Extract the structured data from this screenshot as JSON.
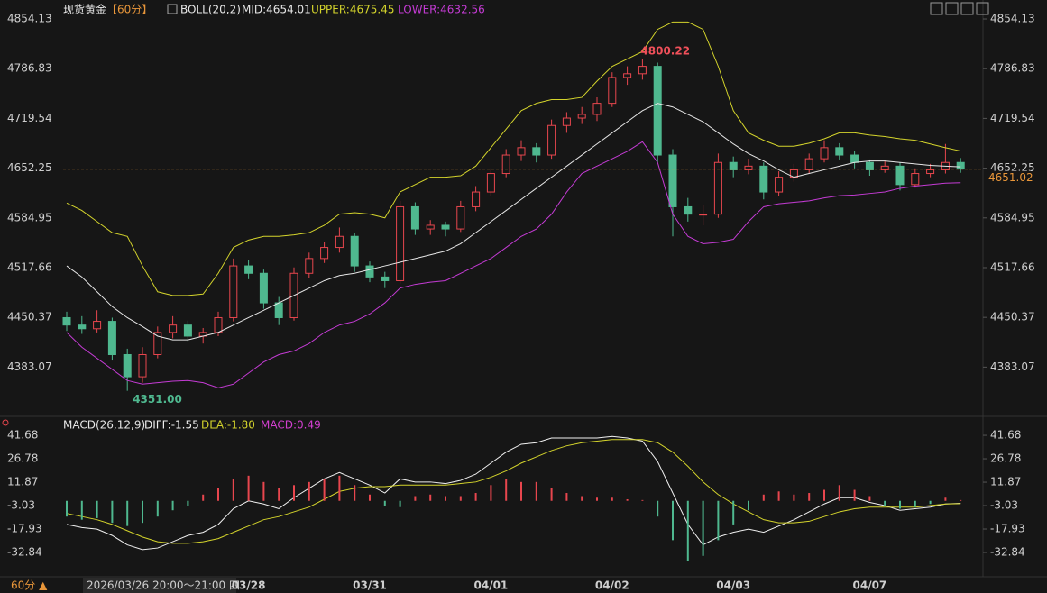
{
  "chart_data": [
    {
      "type": "candlestick",
      "title": "现货黄金",
      "period": "【60分】",
      "indicator": "BOLL(20,2)",
      "header_labels": [
        "MID:4654.01",
        "UPPER:4675.45",
        "LOWER:4632.56"
      ],
      "categories": [
        null,
        null,
        null,
        null,
        null,
        null,
        null,
        null,
        null,
        null,
        null,
        null,
        "03/28",
        null,
        null,
        null,
        null,
        null,
        null,
        null,
        "03/31",
        null,
        null,
        null,
        null,
        null,
        null,
        null,
        "04/01",
        null,
        null,
        null,
        null,
        null,
        null,
        null,
        "04/02",
        null,
        null,
        null,
        null,
        null,
        null,
        null,
        "04/03",
        null,
        null,
        null,
        null,
        null,
        null,
        null,
        null,
        "04/07",
        null,
        null,
        null,
        null,
        null,
        null
      ],
      "up_color": "#e8464e",
      "down_color": "#4fb88f",
      "ohlc": [
        [
          4450,
          4458,
          4432,
          4440
        ],
        [
          4440,
          4452,
          4428,
          4435
        ],
        [
          4435,
          4460,
          4430,
          4445
        ],
        [
          4445,
          4450,
          4392,
          4400
        ],
        [
          4400,
          4408,
          4351,
          4370
        ],
        [
          4370,
          4410,
          4362,
          4400
        ],
        [
          4400,
          4438,
          4395,
          4430
        ],
        [
          4430,
          4452,
          4422,
          4440
        ],
        [
          4440,
          4446,
          4418,
          4425
        ],
        [
          4425,
          4436,
          4415,
          4430
        ],
        [
          4430,
          4458,
          4425,
          4450
        ],
        [
          4450,
          4530,
          4445,
          4520
        ],
        [
          4520,
          4528,
          4502,
          4510
        ],
        [
          4510,
          4515,
          4462,
          4470
        ],
        [
          4470,
          4478,
          4440,
          4450
        ],
        [
          4450,
          4518,
          4446,
          4510
        ],
        [
          4510,
          4538,
          4504,
          4530
        ],
        [
          4530,
          4552,
          4524,
          4545
        ],
        [
          4545,
          4572,
          4538,
          4560
        ],
        [
          4560,
          4565,
          4512,
          4520
        ],
        [
          4520,
          4526,
          4498,
          4505
        ],
        [
          4505,
          4512,
          4490,
          4500
        ],
        [
          4500,
          4608,
          4496,
          4600
        ],
        [
          4600,
          4606,
          4562,
          4570
        ],
        [
          4570,
          4582,
          4562,
          4575
        ],
        [
          4575,
          4580,
          4560,
          4570
        ],
        [
          4570,
          4608,
          4566,
          4600
        ],
        [
          4600,
          4628,
          4594,
          4620
        ],
        [
          4620,
          4652,
          4614,
          4645
        ],
        [
          4645,
          4678,
          4640,
          4670
        ],
        [
          4670,
          4690,
          4662,
          4680
        ],
        [
          4680,
          4686,
          4660,
          4670
        ],
        [
          4670,
          4718,
          4665,
          4710
        ],
        [
          4710,
          4728,
          4700,
          4720
        ],
        [
          4720,
          4735,
          4712,
          4725
        ],
        [
          4725,
          4748,
          4716,
          4740
        ],
        [
          4740,
          4782,
          4735,
          4775
        ],
        [
          4775,
          4790,
          4765,
          4780
        ],
        [
          4780,
          4800.22,
          4772,
          4790
        ],
        [
          4790,
          4795,
          4660,
          4670
        ],
        [
          4670,
          4678,
          4560,
          4600
        ],
        [
          4600,
          4612,
          4580,
          4590
        ],
        [
          4590,
          4602,
          4575,
          4590
        ],
        [
          4590,
          4672,
          4585,
          4660
        ],
        [
          4660,
          4668,
          4640,
          4650
        ],
        [
          4650,
          4665,
          4644,
          4655
        ],
        [
          4655,
          4660,
          4610,
          4620
        ],
        [
          4620,
          4648,
          4614,
          4640
        ],
        [
          4640,
          4658,
          4634,
          4650
        ],
        [
          4650,
          4672,
          4645,
          4665
        ],
        [
          4665,
          4690,
          4660,
          4680
        ],
        [
          4680,
          4686,
          4664,
          4670
        ],
        [
          4670,
          4676,
          4652,
          4660
        ],
        [
          4660,
          4664,
          4642,
          4650
        ],
        [
          4650,
          4662,
          4646,
          4655
        ],
        [
          4655,
          4660,
          4622,
          4630
        ],
        [
          4630,
          4652,
          4626,
          4645
        ],
        [
          4645,
          4658,
          4640,
          4650
        ],
        [
          4650,
          4685,
          4645,
          4660
        ],
        [
          4660,
          4666,
          4646,
          4651.02
        ]
      ],
      "series": [
        {
          "name": "MID",
          "color": "#e6e6e6",
          "values": [
            4520,
            4505,
            4485,
            4465,
            4450,
            4438,
            4425,
            4420,
            4420,
            4425,
            4430,
            4440,
            4450,
            4460,
            4470,
            4480,
            4490,
            4500,
            4507,
            4510,
            4515,
            4520,
            4525,
            4530,
            4535,
            4540,
            4550,
            4565,
            4580,
            4595,
            4610,
            4625,
            4640,
            4655,
            4670,
            4685,
            4700,
            4715,
            4730,
            4740,
            4735,
            4725,
            4715,
            4700,
            4685,
            4672,
            4662,
            4650,
            4640,
            4645,
            4650,
            4655,
            4660,
            4662,
            4662,
            4660,
            4658,
            4656,
            4655,
            4654.01
          ]
        },
        {
          "name": "UPPER",
          "color": "#d4d42c",
          "values": [
            4605,
            4595,
            4580,
            4565,
            4560,
            4520,
            4485,
            4480,
            4480,
            4482,
            4510,
            4545,
            4555,
            4560,
            4560,
            4562,
            4565,
            4575,
            4590,
            4592,
            4590,
            4585,
            4620,
            4630,
            4640,
            4640,
            4642,
            4655,
            4680,
            4705,
            4730,
            4740,
            4745,
            4745,
            4748,
            4770,
            4790,
            4800,
            4810,
            4840,
            4850,
            4850,
            4840,
            4790,
            4730,
            4700,
            4690,
            4682,
            4682,
            4686,
            4692,
            4700,
            4700,
            4697,
            4695,
            4692,
            4690,
            4685,
            4680,
            4675.45
          ]
        },
        {
          "name": "LOWER",
          "color": "#c43bd4",
          "values": [
            4430,
            4410,
            4395,
            4380,
            4365,
            4360,
            4362,
            4364,
            4365,
            4362,
            4355,
            4360,
            4375,
            4390,
            4400,
            4405,
            4415,
            4430,
            4440,
            4445,
            4455,
            4470,
            4490,
            4495,
            4498,
            4500,
            4510,
            4520,
            4530,
            4545,
            4560,
            4570,
            4590,
            4620,
            4645,
            4655,
            4665,
            4675,
            4688,
            4660,
            4590,
            4560,
            4550,
            4552,
            4556,
            4580,
            4600,
            4604,
            4606,
            4608,
            4612,
            4615,
            4616,
            4618,
            4620,
            4625,
            4628,
            4630,
            4632,
            4632.56
          ]
        }
      ],
      "annotations": [
        {
          "value": 4800.22,
          "label": "4800.22",
          "color": "#f0505a"
        },
        {
          "value": 4351,
          "label": "4351.00",
          "color": "#4fb88f"
        }
      ],
      "last_color": "#e8963a",
      "ylim": [
        4340,
        4860
      ],
      "yticks": [
        4854.13,
        4786.83,
        4719.54,
        4652.25,
        4584.95,
        4517.66,
        4450.37,
        4383.07
      ]
    },
    {
      "type": "macd",
      "title": "MACD(26,12,9)",
      "header_labels": [
        "DIFF:-1.55",
        "DEA:-1.80",
        "MACD:0.49"
      ],
      "series": [
        {
          "name": "DIFF",
          "color": "#f0f0f0",
          "values": [
            -15,
            -17,
            -18,
            -22,
            -28,
            -31,
            -30,
            -26,
            -22,
            -20,
            -15,
            -5,
            0,
            -2,
            -5,
            2,
            8,
            14,
            18,
            14,
            10,
            5,
            14,
            12,
            12,
            11,
            13,
            17,
            24,
            31,
            36,
            37,
            40,
            40,
            40,
            40,
            41,
            40,
            38,
            25,
            5,
            -15,
            -28,
            -23,
            -20,
            -18,
            -20,
            -16,
            -12,
            -7,
            -2,
            2,
            2,
            -1,
            -3,
            -6,
            -5,
            -4,
            -2,
            -1.55
          ]
        },
        {
          "name": "DEA",
          "color": "#d4d42c",
          "values": [
            -8,
            -10,
            -12,
            -15,
            -19,
            -23,
            -26,
            -27,
            -27,
            -26,
            -24,
            -20,
            -16,
            -12,
            -10,
            -7,
            -4,
            1,
            6,
            8,
            9,
            9,
            10,
            10,
            10,
            10,
            11,
            12,
            15,
            19,
            24,
            28,
            32,
            35,
            37,
            38,
            39,
            39,
            39,
            37,
            31,
            22,
            12,
            4,
            -2,
            -7,
            -12,
            -14,
            -14,
            -13,
            -10,
            -7,
            -5,
            -4,
            -4,
            -4,
            -4,
            -3,
            -2,
            -1.8
          ]
        },
        {
          "name": "MACD",
          "color": "#d23fd0",
          "type": "histogram",
          "up_color": "#e8464e",
          "down_color": "#4fb88f",
          "values": [
            -10,
            -12,
            -11,
            -14,
            -16,
            -14,
            -10,
            -6,
            -3,
            4,
            8,
            14,
            16,
            12,
            8,
            10,
            12,
            14,
            16,
            10,
            4,
            -3,
            -4,
            3,
            4,
            3,
            3,
            5,
            10,
            14,
            12,
            12,
            8,
            5,
            3,
            2,
            2,
            1,
            0.5,
            -10,
            -25,
            -38,
            -35,
            -25,
            -15,
            -6,
            4,
            6,
            4,
            5,
            7,
            10,
            7,
            3,
            -3,
            -5,
            -4,
            -2,
            2,
            0.49
          ]
        }
      ],
      "ylim": [
        -42,
        44
      ],
      "yticks": [
        41.68,
        26.78,
        11.87,
        -3.03,
        -17.93,
        -32.84
      ]
    }
  ],
  "footer": {
    "period": "60分 ▲",
    "cursor_time": "2026/03/26 20:00～21:00 四"
  }
}
